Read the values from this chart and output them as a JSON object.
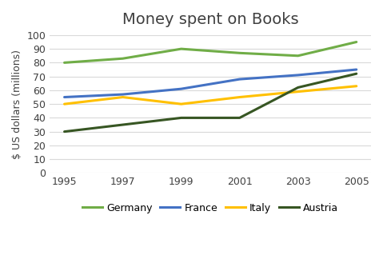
{
  "title": "Money spent on Books",
  "ylabel": "$ US dollars (millions)",
  "years": [
    1995,
    1997,
    1999,
    2001,
    2003,
    2005
  ],
  "series": {
    "Germany": [
      80,
      83,
      90,
      87,
      85,
      95
    ],
    "France": [
      55,
      57,
      61,
      68,
      71,
      75
    ],
    "Italy": [
      50,
      55,
      50,
      55,
      59,
      63
    ],
    "Austria": [
      30,
      35,
      40,
      40,
      62,
      72
    ]
  },
  "colors": {
    "Germany": "#70ad47",
    "France": "#4472c4",
    "Italy": "#ffc000",
    "Austria": "#375623"
  },
  "ylim": [
    0,
    100
  ],
  "yticks": [
    0,
    10,
    20,
    30,
    40,
    50,
    60,
    70,
    80,
    90,
    100
  ],
  "xticks": [
    1995,
    1997,
    1999,
    2001,
    2003,
    2005
  ],
  "legend_ncol": 4,
  "title_fontsize": 14,
  "axis_label_fontsize": 9,
  "tick_fontsize": 9,
  "legend_fontsize": 9,
  "linewidth": 2.2,
  "grid_color": "#d9d9d9",
  "grid_linewidth": 0.8
}
